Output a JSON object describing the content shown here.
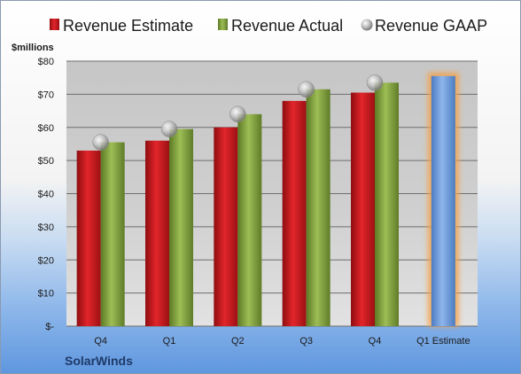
{
  "chart_data": {
    "type": "bar",
    "ylabel": "$millions",
    "ylim": [
      0,
      80
    ],
    "ytick_step": 10,
    "ytick_labels": [
      "$-",
      "$10",
      "$20",
      "$30",
      "$40",
      "$50",
      "$60",
      "$70",
      "$80"
    ],
    "categories": [
      "Q4",
      "Q1",
      "Q2",
      "Q3",
      "Q4",
      "Q1 Estimate"
    ],
    "series": [
      {
        "name": "Revenue Estimate",
        "kind": "bar",
        "color": "#c8161d",
        "values": [
          53,
          56,
          60,
          68,
          70.5,
          null
        ]
      },
      {
        "name": "Revenue Actual",
        "kind": "bar",
        "color": "#7f9e3c",
        "values": [
          55.5,
          59.5,
          64,
          71.5,
          73.5,
          null
        ]
      },
      {
        "name": "Revenue GAAP",
        "kind": "marker",
        "color": "#b8b8b8",
        "values": [
          55.5,
          59.5,
          64,
          71.5,
          73.5,
          null
        ]
      },
      {
        "name": "",
        "kind": "bar",
        "color": "#6d9cd9",
        "highlight": "#f5a34a",
        "values": [
          null,
          null,
          null,
          null,
          null,
          75.5
        ]
      }
    ],
    "grid": true,
    "legend": "top"
  },
  "footer": {
    "company": "SolarWinds"
  }
}
